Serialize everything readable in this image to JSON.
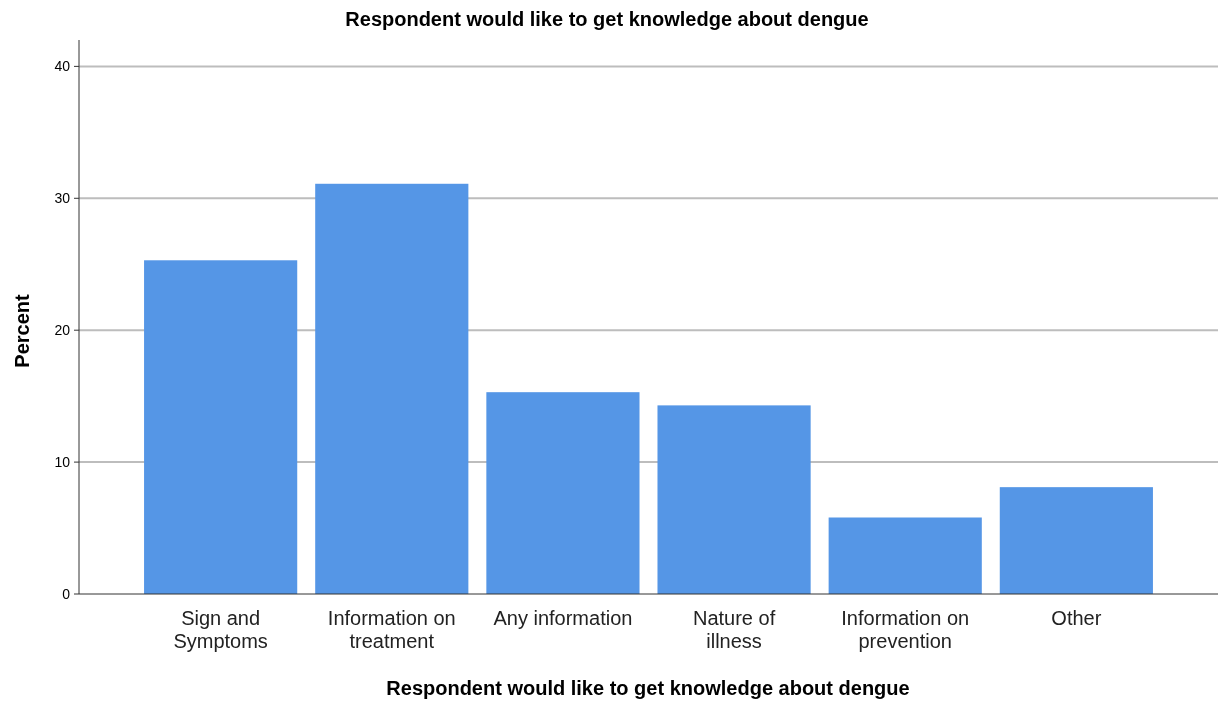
{
  "chart_data": {
    "type": "bar",
    "title": "Respondent would like to get knowledge about dengue",
    "xlabel": "Respondent would like to get knowledge about dengue",
    "ylabel": "Percent",
    "categories": [
      "Sign and Symptoms",
      "Information on treatment",
      "Any information",
      "Nature of illness",
      "Information on prevention",
      "Other"
    ],
    "values": [
      25.3,
      31.1,
      15.3,
      14.3,
      5.8,
      8.1
    ],
    "color": "#5596e6",
    "ylim": [
      0,
      42
    ],
    "yticks": [
      0,
      10,
      20,
      30,
      40
    ],
    "grid": "y"
  }
}
